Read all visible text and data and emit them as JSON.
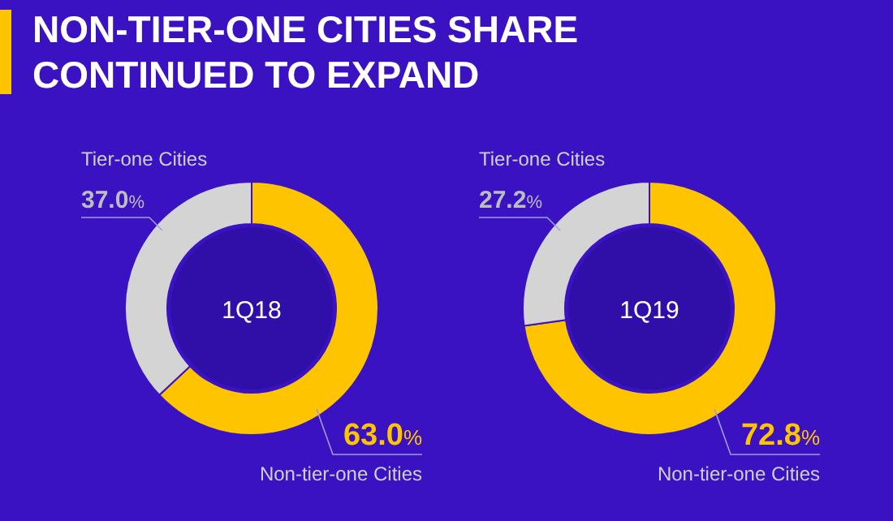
{
  "chart_data": [
    {
      "type": "donut",
      "title": "1Q18",
      "annotations": [
        "NON-TIER-ONE CITIES SHARE",
        "CONTINUED TO EXPAND"
      ],
      "categories": [
        "Tier-one Cities",
        "Non-tier-one Cities"
      ],
      "values": [
        37.0,
        63.0
      ],
      "colors": [
        "#d4d4d4",
        "#ffc400"
      ],
      "value_labels": [
        "37.0%",
        "63.0%"
      ]
    },
    {
      "type": "donut",
      "title": "1Q19",
      "categories": [
        "Tier-one Cities",
        "Non-tier-one Cities"
      ],
      "values": [
        27.2,
        72.8
      ],
      "colors": [
        "#d4d4d4",
        "#ffc400"
      ],
      "value_labels": [
        "27.2%",
        "72.8%"
      ]
    }
  ]
}
